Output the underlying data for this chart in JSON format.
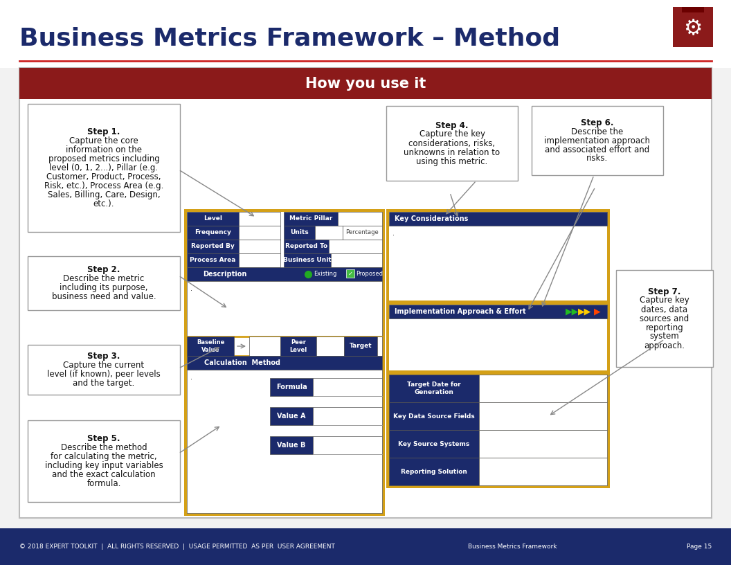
{
  "title": "Business Metrics Framework – Method",
  "bg_color": "#F2F2F2",
  "header_bg": "#8B1A1A",
  "header_text": "How you use it",
  "dark_blue": "#1B2A6B",
  "gold_border": "#D4A017",
  "footer_bg": "#1B2A6B",
  "footer_left": "© 2018 EXPERT TOOLKIT  |  ALL RIGHTS RESERVED  |  USAGE PERMITTED  AS PER  USER AGREEMENT",
  "footer_center": "Business Metrics Framework",
  "footer_right": "Page 15",
  "step1_title": "Step 1.",
  "step1_text": "Capture the core\ninformation on the\nproposed metrics including\nlevel (0, 1, 2...), Pillar (e.g.\nCustomer, Product, Process,\nRisk, etc.), Process Area (e.g.\nSales, Billing, Care, Design,\netc.).",
  "step2_title": "Step 2.",
  "step2_text": "Describe the metric\nincluding its purpose,\nbusiness need and value.",
  "step3_title": "Step 3.",
  "step3_text": "Capture the current\nlevel (if known), peer levels\nand the target.",
  "step4_title": "Step 4.",
  "step4_text": "Capture the key\nconsiderations, risks,\nunknowns in relation to\nusing this metric.",
  "step5_title": "Step 5.",
  "step5_text": "Describe the method\nfor calculating the metric,\nincluding key input variables\nand the exact calculation\nformula.",
  "step6_title": "Step 6.",
  "step6_text": "Describe the\nimplementation approach\nand associated effort and\nrisks.",
  "step7_title": "Step 7.",
  "step7_text": "Capture key\ndates, data\nsources and\nreporting\nsystem\napproach."
}
